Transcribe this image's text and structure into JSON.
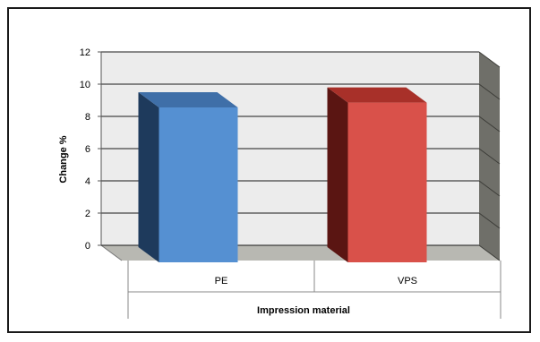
{
  "chart_data": {
    "type": "bar",
    "title": "",
    "xlabel": "Impression material",
    "ylabel": "Change %",
    "categories": [
      "PE",
      "VPS"
    ],
    "values": [
      9.5,
      9.8
    ],
    "ylim": [
      0,
      12
    ],
    "yticks": [
      0,
      2,
      4,
      6,
      8,
      10,
      12
    ],
    "grid": true,
    "legend": "none",
    "style": "3d-column",
    "colors": {
      "PE": {
        "front": "#5590d2",
        "side": "#1e3a5c",
        "top": "#3f6fa8"
      },
      "VPS": {
        "front": "#d9514a",
        "side": "#5a1512",
        "top": "#a83029"
      },
      "wall": "#ececec",
      "side_wall": "#6f6f69",
      "floor": "#b8b8b2",
      "grid": "#1a1a1a"
    }
  }
}
